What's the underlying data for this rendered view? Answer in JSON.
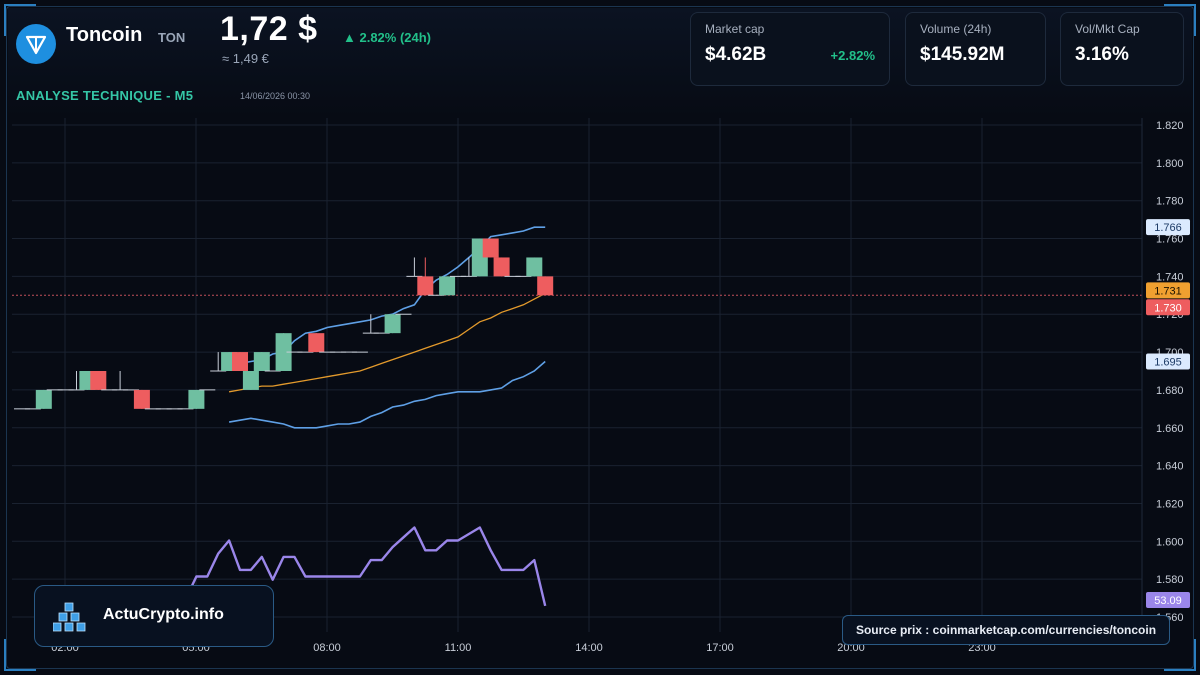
{
  "header": {
    "coin_name": "Toncoin",
    "ticker": "TON",
    "price": "1,72 $",
    "price_eur": "≈ 1,49 €",
    "change_24h": "▲ 2.82% (24h)",
    "section_title": "ANALYSE TECHNIQUE - M5",
    "timestamp": "14/06/2026 00:30"
  },
  "stats": {
    "market_cap_label": "Market cap",
    "market_cap_value": "$4.62B",
    "market_cap_change": "+2.82%",
    "volume_label": "Volume (24h)",
    "volume_value": "$145.92M",
    "vol_mkt_label": "Vol/Mkt Cap",
    "vol_mkt_value": "3.16%"
  },
  "brand": {
    "name": "ActuCrypto.info"
  },
  "source": {
    "text": "Source prix : coinmarketcap.com/currencies/toncoin"
  },
  "colors": {
    "up": "#6fbfa1",
    "down": "#ee5d5f",
    "bollinger": "#5fa0e6",
    "ma": "#e39a2c",
    "rsi": "#9a86ea",
    "last_price": "#f0a030",
    "grid": "#1a2230"
  },
  "chart_data": [
    {
      "type": "candlestick",
      "title": "",
      "y_axis_ticks": [
        "1.820",
        "1.800",
        "1.780",
        "1.760",
        "1.740",
        "1.720",
        "1.700",
        "1.680",
        "1.660",
        "1.640",
        "1.620",
        "1.600",
        "1.580",
        "1.560"
      ],
      "x_axis_ticks": [
        "02:00",
        "05:00",
        "08:00",
        "11:00",
        "14:00",
        "17:00",
        "20:00",
        "23:00"
      ],
      "ylim": [
        1.556,
        1.824
      ],
      "grid": true,
      "price_labels": {
        "bollinger_upper": "1.766",
        "ma": "1.731",
        "last_price": "1.730",
        "bollinger_lower": "1.695"
      },
      "candles": [
        {
          "t": 0.0,
          "o": 1.67,
          "c": 1.67
        },
        {
          "t": 0.5,
          "o": 1.67,
          "c": 1.67
        },
        {
          "t": 1.0,
          "o": 1.67,
          "c": 1.68
        },
        {
          "t": 1.5,
          "o": 1.68,
          "c": 1.68
        },
        {
          "t": 2.0,
          "o": 1.68,
          "c": 1.68
        },
        {
          "t": 2.5,
          "o": 1.68,
          "c": 1.68,
          "h": 1.69
        },
        {
          "t": 3.0,
          "o": 1.68,
          "c": 1.69
        },
        {
          "t": 3.5,
          "o": 1.69,
          "c": 1.68
        },
        {
          "t": 4.0,
          "o": 1.68,
          "c": 1.68
        },
        {
          "t": 4.5,
          "o": 1.68,
          "c": 1.68,
          "h": 1.69
        },
        {
          "t": 5.0,
          "o": 1.68,
          "c": 1.68
        },
        {
          "t": 5.5,
          "o": 1.68,
          "c": 1.67
        },
        {
          "t": 6.0,
          "o": 1.67,
          "c": 1.67
        },
        {
          "t": 6.5,
          "o": 1.67,
          "c": 1.67
        },
        {
          "t": 7.0,
          "o": 1.67,
          "c": 1.67
        },
        {
          "t": 7.5,
          "o": 1.67,
          "c": 1.67
        },
        {
          "t": 8.0,
          "o": 1.67,
          "c": 1.68
        },
        {
          "t": 8.5,
          "o": 1.68,
          "c": 1.68
        },
        {
          "t": 9.0,
          "o": 1.69,
          "c": 1.69,
          "h": 1.7
        },
        {
          "t": 9.5,
          "o": 1.69,
          "c": 1.7
        },
        {
          "t": 10.0,
          "o": 1.7,
          "c": 1.69
        },
        {
          "t": 10.5,
          "o": 1.68,
          "c": 1.69
        },
        {
          "t": 11.0,
          "o": 1.69,
          "c": 1.7
        },
        {
          "t": 11.5,
          "o": 1.69,
          "c": 1.69
        },
        {
          "t": 12.0,
          "o": 1.69,
          "c": 1.71
        },
        {
          "t": 12.5,
          "o": 1.7,
          "c": 1.7
        },
        {
          "t": 13.0,
          "o": 1.7,
          "c": 1.7
        },
        {
          "t": 13.5,
          "o": 1.71,
          "c": 1.7
        },
        {
          "t": 14.0,
          "o": 1.7,
          "c": 1.7
        },
        {
          "t": 14.5,
          "o": 1.7,
          "c": 1.7
        },
        {
          "t": 15.0,
          "o": 1.7,
          "c": 1.7
        },
        {
          "t": 15.5,
          "o": 1.7,
          "c": 1.7
        },
        {
          "t": 16.0,
          "o": 1.71,
          "c": 1.71,
          "h": 1.72
        },
        {
          "t": 16.5,
          "o": 1.71,
          "c": 1.71
        },
        {
          "t": 17.0,
          "o": 1.71,
          "c": 1.72
        },
        {
          "t": 17.5,
          "o": 1.72,
          "c": 1.72,
          "l": 1.72
        },
        {
          "t": 18.0,
          "o": 1.74,
          "c": 1.74,
          "h": 1.75
        },
        {
          "t": 18.5,
          "o": 1.74,
          "c": 1.73,
          "h": 1.75
        },
        {
          "t": 19.0,
          "o": 1.73,
          "c": 1.73
        },
        {
          "t": 19.5,
          "o": 1.73,
          "c": 1.74
        },
        {
          "t": 20.0,
          "o": 1.74,
          "c": 1.74
        },
        {
          "t": 20.5,
          "o": 1.74,
          "c": 1.74,
          "h": 1.75
        },
        {
          "t": 21.0,
          "o": 1.74,
          "c": 1.76
        },
        {
          "t": 21.5,
          "o": 1.76,
          "c": 1.75
        },
        {
          "t": 22.0,
          "o": 1.75,
          "c": 1.74
        },
        {
          "t": 22.5,
          "o": 1.74,
          "c": 1.74
        },
        {
          "t": 23.0,
          "o": 1.74,
          "c": 1.74
        },
        {
          "t": 23.5,
          "o": 1.74,
          "c": 1.75
        },
        {
          "t": 24.0,
          "o": 1.74,
          "c": 1.73
        }
      ],
      "series": [
        {
          "name": "",
          "style": "bollinger_upper",
          "x": [
            9.5,
            10.0,
            10.5,
            11.0,
            11.5,
            12.0,
            12.5,
            13.0,
            13.5,
            14.0,
            14.5,
            15.0,
            15.5,
            16.0,
            16.5,
            17.0,
            17.5,
            18.0,
            18.5,
            19.0,
            19.5,
            20.0,
            20.5,
            21.0,
            21.5,
            22.0,
            22.5,
            23.0,
            23.5,
            24.0
          ],
          "values": [
            1.694,
            1.694,
            1.695,
            1.696,
            1.699,
            1.7,
            1.706,
            1.71,
            1.711,
            1.713,
            1.714,
            1.715,
            1.716,
            1.717,
            1.719,
            1.72,
            1.723,
            1.725,
            1.733,
            1.738,
            1.741,
            1.745,
            1.75,
            1.755,
            1.761,
            1.762,
            1.763,
            1.764,
            1.766,
            1.766
          ]
        },
        {
          "name": "",
          "style": "ma",
          "x": [
            9.5,
            10.0,
            10.5,
            11.0,
            11.5,
            12.0,
            12.5,
            13.0,
            13.5,
            14.0,
            14.5,
            15.0,
            15.5,
            16.0,
            16.5,
            17.0,
            17.5,
            18.0,
            18.5,
            19.0,
            19.5,
            20.0,
            20.5,
            21.0,
            21.5,
            22.0,
            22.5,
            23.0,
            23.5,
            24.0
          ],
          "values": [
            1.679,
            1.68,
            1.681,
            1.682,
            1.682,
            1.683,
            1.684,
            1.685,
            1.686,
            1.687,
            1.688,
            1.689,
            1.69,
            1.692,
            1.694,
            1.696,
            1.698,
            1.7,
            1.702,
            1.704,
            1.706,
            1.708,
            1.712,
            1.716,
            1.718,
            1.721,
            1.723,
            1.725,
            1.728,
            1.731
          ]
        },
        {
          "name": "",
          "style": "bollinger_lower",
          "x": [
            9.5,
            10.0,
            10.5,
            11.0,
            11.5,
            12.0,
            12.5,
            13.0,
            13.5,
            14.0,
            14.5,
            15.0,
            15.5,
            16.0,
            16.5,
            17.0,
            17.5,
            18.0,
            18.5,
            19.0,
            19.5,
            20.0,
            20.5,
            21.0,
            21.5,
            22.0,
            22.5,
            23.0,
            23.5,
            24.0
          ],
          "values": [
            1.663,
            1.664,
            1.665,
            1.664,
            1.663,
            1.662,
            1.66,
            1.66,
            1.66,
            1.661,
            1.662,
            1.662,
            1.663,
            1.666,
            1.668,
            1.671,
            1.672,
            1.674,
            1.675,
            1.677,
            1.678,
            1.679,
            1.679,
            1.679,
            1.68,
            1.681,
            1.685,
            1.687,
            1.69,
            1.695
          ]
        }
      ]
    },
    {
      "type": "line",
      "title": "",
      "last_value_label": "53.09",
      "x": [
        7.0,
        7.5,
        8.0,
        8.5,
        9.0,
        9.5,
        10.0,
        10.5,
        11.0,
        11.5,
        12.0,
        12.5,
        13.0,
        13.5,
        14.0,
        14.5,
        15.0,
        15.5,
        16.0,
        16.5,
        17.0,
        17.5,
        18.0,
        18.5,
        19.0,
        19.5,
        20.0,
        20.5,
        21.0,
        21.5,
        22.0,
        22.5,
        23.0,
        23.5,
        24.0
      ],
      "values": [
        55,
        55,
        62,
        62,
        69,
        73,
        64,
        64,
        68,
        61,
        68,
        68,
        62,
        62,
        62,
        62,
        62,
        62,
        67,
        67,
        71,
        74,
        77,
        70,
        70,
        73,
        73,
        75,
        77,
        70,
        64,
        64,
        64,
        67,
        53
      ],
      "ylim": [
        45,
        90
      ]
    }
  ]
}
